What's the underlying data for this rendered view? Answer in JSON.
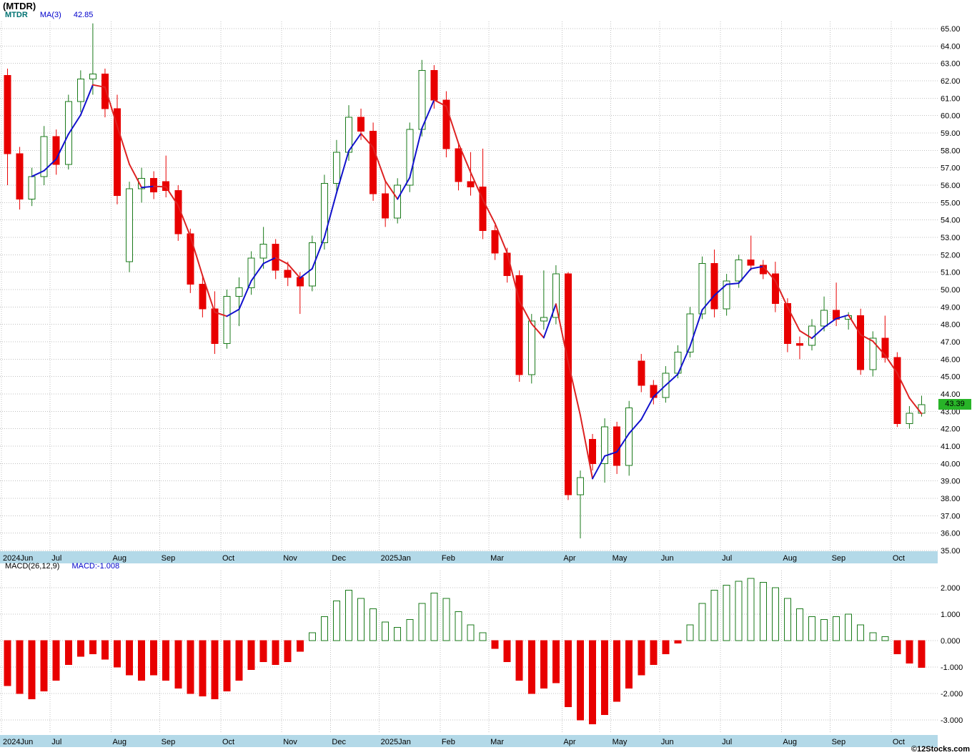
{
  "header": {
    "title": "(MTDR)",
    "symbol": "MTDR",
    "ma_label": "MA(3)",
    "ma_value": "42.85",
    "last_price": "43.39"
  },
  "macd_panel": {
    "label": "MACD(26,12,9)",
    "value_label": "MACD:-1.008"
  },
  "footer": {
    "copyright": "©12Stocks.com"
  },
  "colors": {
    "up": "#1a7a1a",
    "down": "#e80000",
    "ma_up": "#1111cc",
    "ma_down": "#dd2222",
    "grid": "#c0c0c0",
    "axis_strip": "#b3d9e8",
    "badge_bg": "#28b428",
    "badge_text": "#000000"
  },
  "chart_data": [
    {
      "type": "candlestick",
      "title": "MTDR weekly candlesticks with MA(3) overlay",
      "ylabel": "Price",
      "ylim": [
        35,
        65.5
      ],
      "ytick_min": 35,
      "ytick_max": 65,
      "ytick_step": 1,
      "grid": true,
      "x_labels": [
        "2024Jun",
        "Jul",
        "Aug",
        "Sep",
        "Oct",
        "Nov",
        "Dec",
        "2025Jan",
        "Feb",
        "Mar",
        "Apr",
        "May",
        "Jun",
        "Jul",
        "Aug",
        "Sep",
        "Oct"
      ],
      "month_tick_indices": [
        0,
        4,
        9,
        13,
        18,
        23,
        27,
        31,
        36,
        40,
        46,
        50,
        54,
        59,
        64,
        68,
        73
      ],
      "ma_period": 3,
      "ma_last_value": 42.85,
      "last_close": 43.39,
      "candles": [
        [
          62.3,
          62.7,
          56.0,
          57.8
        ],
        [
          57.8,
          58.2,
          54.6,
          55.2
        ],
        [
          55.2,
          57.0,
          54.8,
          56.5
        ],
        [
          56.5,
          59.4,
          56.0,
          58.8
        ],
        [
          58.8,
          59.2,
          56.6,
          57.2
        ],
        [
          57.2,
          61.2,
          56.9,
          60.8
        ],
        [
          60.8,
          62.6,
          60.2,
          62.1
        ],
        [
          62.1,
          65.3,
          61.2,
          62.4
        ],
        [
          62.4,
          62.7,
          59.9,
          60.4
        ],
        [
          60.4,
          61.2,
          54.9,
          55.4
        ],
        [
          51.6,
          56.2,
          51.0,
          55.8
        ],
        [
          55.8,
          57.0,
          55.0,
          56.4
        ],
        [
          56.4,
          56.8,
          55.2,
          55.6
        ],
        [
          56.2,
          57.7,
          55.3,
          55.7
        ],
        [
          55.7,
          56.0,
          52.8,
          53.2
        ],
        [
          53.2,
          53.5,
          49.8,
          50.3
        ],
        [
          50.3,
          50.8,
          48.4,
          48.9
        ],
        [
          48.9,
          49.9,
          46.3,
          46.9
        ],
        [
          46.9,
          50.0,
          46.6,
          49.6
        ],
        [
          49.6,
          50.7,
          47.9,
          50.1
        ],
        [
          50.1,
          52.2,
          49.7,
          51.8
        ],
        [
          51.8,
          53.6,
          51.2,
          52.6
        ],
        [
          52.6,
          52.9,
          50.6,
          51.1
        ],
        [
          51.1,
          51.6,
          50.2,
          50.7
        ],
        [
          50.7,
          51.0,
          48.6,
          50.2
        ],
        [
          50.2,
          53.1,
          49.9,
          52.7
        ],
        [
          52.7,
          56.6,
          52.3,
          56.1
        ],
        [
          56.1,
          58.6,
          55.6,
          57.9
        ],
        [
          57.9,
          60.6,
          57.4,
          59.9
        ],
        [
          59.9,
          60.4,
          58.6,
          59.1
        ],
        [
          59.1,
          59.6,
          55.1,
          55.5
        ],
        [
          55.5,
          56.3,
          53.6,
          54.1
        ],
        [
          54.1,
          56.4,
          53.8,
          56.0
        ],
        [
          56.0,
          59.6,
          55.6,
          59.2
        ],
        [
          59.2,
          63.2,
          58.8,
          62.6
        ],
        [
          62.6,
          62.9,
          60.4,
          60.9
        ],
        [
          60.9,
          61.4,
          57.6,
          58.1
        ],
        [
          58.1,
          58.4,
          55.7,
          56.2
        ],
        [
          56.2,
          57.9,
          55.4,
          55.9
        ],
        [
          55.9,
          58.1,
          52.9,
          53.4
        ],
        [
          53.4,
          53.7,
          51.7,
          52.1
        ],
        [
          52.1,
          52.4,
          50.4,
          50.8
        ],
        [
          50.8,
          51.1,
          44.7,
          45.1
        ],
        [
          45.1,
          48.6,
          44.6,
          48.2
        ],
        [
          48.2,
          51.1,
          47.7,
          48.4
        ],
        [
          48.4,
          51.4,
          48.0,
          50.9
        ],
        [
          50.9,
          51.0,
          37.9,
          38.2
        ],
        [
          38.2,
          39.6,
          35.7,
          39.2
        ],
        [
          41.4,
          41.7,
          39.6,
          40.0
        ],
        [
          40.0,
          42.6,
          38.9,
          42.1
        ],
        [
          42.1,
          42.4,
          39.4,
          39.9
        ],
        [
          39.9,
          43.6,
          39.3,
          43.2
        ],
        [
          45.9,
          46.3,
          44.1,
          44.5
        ],
        [
          44.5,
          44.8,
          43.4,
          43.8
        ],
        [
          43.8,
          45.6,
          43.5,
          45.2
        ],
        [
          45.2,
          46.8,
          44.9,
          46.4
        ],
        [
          46.4,
          49.0,
          46.1,
          48.6
        ],
        [
          48.6,
          51.9,
          48.3,
          51.5
        ],
        [
          51.5,
          52.3,
          48.4,
          48.9
        ],
        [
          48.9,
          50.9,
          48.5,
          50.5
        ],
        [
          50.5,
          52.0,
          50.1,
          51.7
        ],
        [
          51.7,
          53.1,
          51.1,
          51.4
        ],
        [
          51.4,
          51.7,
          50.6,
          50.9
        ],
        [
          50.9,
          51.6,
          48.7,
          49.2
        ],
        [
          49.2,
          49.5,
          46.4,
          46.9
        ],
        [
          46.9,
          47.3,
          46.0,
          46.8
        ],
        [
          46.8,
          48.3,
          46.5,
          47.9
        ],
        [
          47.9,
          49.6,
          47.6,
          48.8
        ],
        [
          48.8,
          50.4,
          47.9,
          48.3
        ],
        [
          48.3,
          48.7,
          47.7,
          48.5
        ],
        [
          48.5,
          48.9,
          45.1,
          45.4
        ],
        [
          45.4,
          47.6,
          45.0,
          47.2
        ],
        [
          47.2,
          48.5,
          45.8,
          46.1
        ],
        [
          46.1,
          46.4,
          42.1,
          42.3
        ],
        [
          42.3,
          43.3,
          42.0,
          42.9
        ],
        [
          42.9,
          43.9,
          42.7,
          43.39
        ]
      ]
    },
    {
      "type": "bar",
      "title": "MACD(26,12,9) histogram",
      "last_value": -1.008,
      "ylim": [
        -3.5,
        2.6
      ],
      "yticks": [
        2,
        1,
        0,
        -1,
        -2,
        -3
      ],
      "grid": true,
      "x_labels": [
        "2024Jun",
        "Jul",
        "Aug",
        "Sep",
        "Oct",
        "Nov",
        "Dec",
        "2025Jan",
        "Feb",
        "Mar",
        "Apr",
        "May",
        "Jun",
        "Jul",
        "Aug",
        "Sep",
        "Oct"
      ],
      "month_tick_indices": [
        0,
        4,
        9,
        13,
        18,
        23,
        27,
        31,
        36,
        40,
        46,
        50,
        54,
        59,
        64,
        68,
        73
      ],
      "values": [
        -1.7,
        -2.0,
        -2.2,
        -1.9,
        -1.5,
        -0.9,
        -0.6,
        -0.5,
        -0.7,
        -1.0,
        -1.3,
        -1.5,
        -1.3,
        -1.5,
        -1.8,
        -2.0,
        -2.1,
        -2.2,
        -1.9,
        -1.5,
        -1.1,
        -0.8,
        -0.9,
        -0.8,
        -0.4,
        0.3,
        0.9,
        1.5,
        1.9,
        1.6,
        1.2,
        0.7,
        0.5,
        0.8,
        1.4,
        1.8,
        1.6,
        1.1,
        0.6,
        0.3,
        -0.3,
        -0.8,
        -1.5,
        -2.0,
        -1.8,
        -1.6,
        -2.5,
        -3.0,
        -3.15,
        -2.8,
        -2.3,
        -1.8,
        -1.3,
        -0.9,
        -0.5,
        -0.1,
        0.6,
        1.4,
        1.9,
        2.1,
        2.25,
        2.35,
        2.2,
        2.0,
        1.6,
        1.2,
        0.9,
        0.8,
        0.9,
        1.0,
        0.6,
        0.3,
        0.15,
        -0.5,
        -0.85,
        -1.008
      ]
    }
  ]
}
